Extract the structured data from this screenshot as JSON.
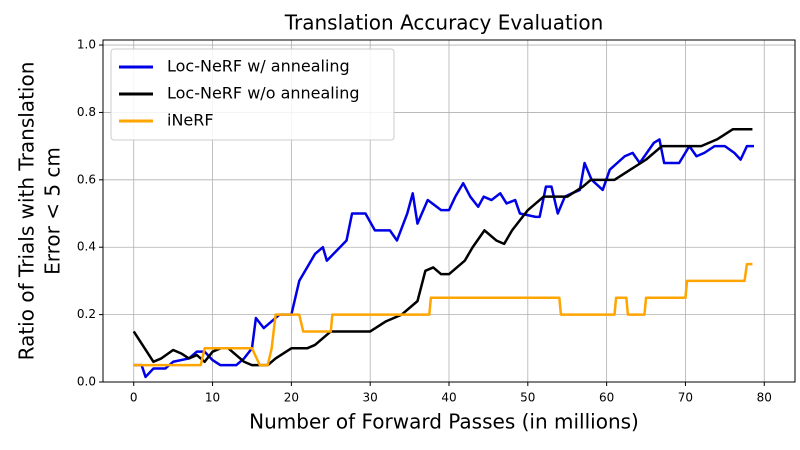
{
  "chart_data": {
    "type": "line",
    "title": "Translation Accuracy Evaluation",
    "x_label": "Number of Forward Passes (in millions)",
    "y_label": [
      "Ratio of Trials with Translation",
      "Error < 5 cm"
    ],
    "xlim": [
      -3.9,
      83.9
    ],
    "ylim": [
      0,
      1.015
    ],
    "xticks": [
      0,
      10,
      20,
      30,
      40,
      50,
      60,
      70,
      80
    ],
    "yticks": [
      {
        "value": 0,
        "label": "0.0"
      },
      {
        "value": 0.2,
        "label": "0.2"
      },
      {
        "value": 0.4,
        "label": "0.4"
      },
      {
        "value": 0.6,
        "label": "0.6"
      },
      {
        "value": 0.8,
        "label": "0.8"
      },
      {
        "value": 1,
        "label": "1.0"
      }
    ],
    "grid": true,
    "legend": "upper left",
    "series": [
      {
        "name": "Loc-NeRF w/ annealing",
        "color": "#0000e6",
        "x": [
          0,
          1,
          1.5,
          2.5,
          4,
          5,
          7,
          8,
          9,
          10,
          11,
          13,
          14,
          15,
          15.5,
          16.5,
          17.5,
          18.5,
          20,
          21,
          23,
          24,
          24.5,
          27,
          27.7,
          29.4,
          30.6,
          32.5,
          33.4,
          34.7,
          35.4,
          36,
          37.3,
          39,
          40,
          40.8,
          41.8,
          42.7,
          43.7,
          44.4,
          45.4,
          46.5,
          47.3,
          48.4,
          49,
          51,
          51.5,
          52.3,
          53,
          53.8,
          54.7,
          55.6,
          56.6,
          57.2,
          58.1,
          59.5,
          60.4,
          62.3,
          63.3,
          64.2,
          66,
          66.7,
          67.3,
          69.2,
          70.5,
          71.4,
          72.4,
          73.7,
          75,
          76.2,
          77,
          77.8,
          78.7
        ],
        "values": [
          0.05,
          0.05,
          0.015,
          0.04,
          0.04,
          0.06,
          0.07,
          0.09,
          0.09,
          0.065,
          0.05,
          0.05,
          0.07,
          0.1,
          0.19,
          0.16,
          0.18,
          0.2,
          0.2,
          0.3,
          0.38,
          0.4,
          0.36,
          0.42,
          0.5,
          0.5,
          0.45,
          0.45,
          0.42,
          0.5,
          0.56,
          0.47,
          0.54,
          0.51,
          0.51,
          0.55,
          0.59,
          0.55,
          0.52,
          0.55,
          0.54,
          0.56,
          0.53,
          0.54,
          0.5,
          0.49,
          0.49,
          0.58,
          0.58,
          0.5,
          0.55,
          0.56,
          0.57,
          0.65,
          0.6,
          0.57,
          0.63,
          0.67,
          0.68,
          0.65,
          0.71,
          0.72,
          0.65,
          0.65,
          0.7,
          0.67,
          0.68,
          0.7,
          0.7,
          0.68,
          0.66,
          0.7,
          0.7
        ]
      },
      {
        "name": "Loc-NeRF w/o annealing",
        "color": "#000000",
        "x": [
          0,
          2.5,
          3.5,
          5,
          6,
          7,
          8,
          9,
          10,
          11,
          12,
          13,
          14,
          15,
          17,
          18,
          20,
          22,
          23,
          25,
          30,
          32,
          34,
          36,
          37,
          38,
          39,
          40,
          42,
          43,
          44.5,
          46,
          47,
          48,
          50,
          52,
          55,
          57,
          58,
          61,
          63,
          65,
          67,
          72,
          74,
          76,
          78.5
        ],
        "values": [
          0.15,
          0.06,
          0.07,
          0.095,
          0.085,
          0.07,
          0.08,
          0.06,
          0.09,
          0.1,
          0.1,
          0.08,
          0.06,
          0.05,
          0.05,
          0.07,
          0.1,
          0.1,
          0.11,
          0.15,
          0.15,
          0.18,
          0.2,
          0.24,
          0.33,
          0.34,
          0.32,
          0.32,
          0.36,
          0.4,
          0.45,
          0.42,
          0.41,
          0.45,
          0.51,
          0.55,
          0.55,
          0.58,
          0.6,
          0.6,
          0.63,
          0.66,
          0.7,
          0.7,
          0.72,
          0.75,
          0.75
        ]
      },
      {
        "name": "iNeRF",
        "color": "#ffa500",
        "x": [
          0,
          8.5,
          9,
          15,
          16,
          17,
          17.5,
          18,
          21,
          21.5,
          25,
          25.2,
          37.5,
          37.7,
          54,
          54.2,
          61,
          61.2,
          62.5,
          62.7,
          64.8,
          65,
          70,
          70.2,
          77.5,
          77.8,
          78.5
        ],
        "values": [
          0.05,
          0.05,
          0.1,
          0.1,
          0.05,
          0.05,
          0.1,
          0.2,
          0.2,
          0.15,
          0.15,
          0.2,
          0.2,
          0.25,
          0.25,
          0.2,
          0.2,
          0.25,
          0.25,
          0.2,
          0.2,
          0.25,
          0.25,
          0.3,
          0.3,
          0.35,
          0.35
        ]
      }
    ]
  }
}
